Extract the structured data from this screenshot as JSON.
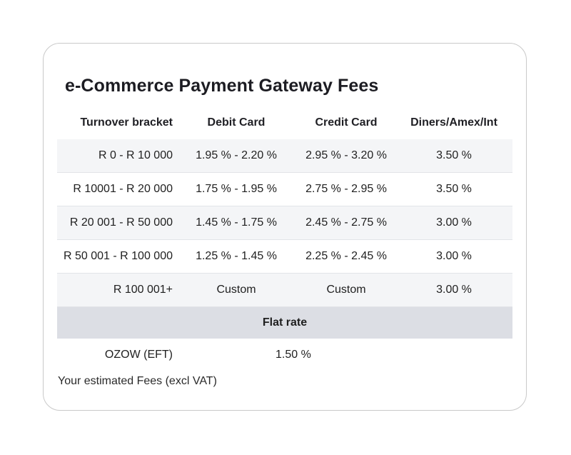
{
  "title": "e-Commerce Payment Gateway Fees",
  "headers": [
    "Turnover bracket",
    "Debit Card",
    "Credit Card",
    "Diners/Amex/Int"
  ],
  "rows": [
    {
      "bracket": "R 0 - R 10 000",
      "debit": "1.95 %  -  2.20 %",
      "credit": "2.95 %  -  3.20 %",
      "diners": "3.50 %"
    },
    {
      "bracket": "R 10001 - R 20 000",
      "debit": "1.75 %  -  1.95 %",
      "credit": "2.75 %  -  2.95 %",
      "diners": "3.50 %"
    },
    {
      "bracket": "R 20 001 - R 50 000",
      "debit": "1.45 %  -  1.75 %",
      "credit": "2.45 %  -  2.75 %",
      "diners": "3.00 %"
    },
    {
      "bracket": "R 50 001 - R 100 000",
      "debit": "1.25 %  -  1.45 %",
      "credit": "2.25 %  -  2.45 %",
      "diners": "3.00 %"
    },
    {
      "bracket": "R 100 001+",
      "debit": "Custom",
      "credit": "Custom",
      "diners": "3.00 %"
    }
  ],
  "flat_rate": {
    "label": "Flat rate",
    "item": "OZOW (EFT)",
    "value": "1.50 %"
  },
  "note": "Your estimated Fees (excl VAT)",
  "colors": {
    "shaded_row": "#f4f5f7",
    "flat_rate_band": "#dcdee4",
    "card_border": "#c9c9c9"
  }
}
